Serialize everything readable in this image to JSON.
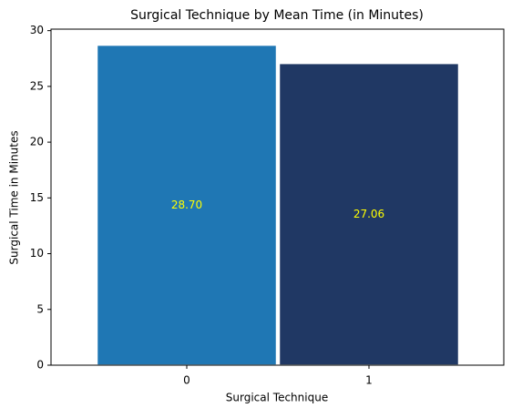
{
  "chart_data": {
    "type": "bar",
    "title": "Surgical Technique by Mean Time (in Minutes)",
    "x_label": "Surgical Technique",
    "y_label": "Surgical Time in Minutes",
    "categories": [
      "0",
      "1"
    ],
    "values": [
      28.7,
      27.06
    ],
    "value_labels": [
      "28.70",
      "27.06"
    ],
    "colors": [
      "#1f77b4",
      "#203864"
    ],
    "value_label_color": "#ffff00",
    "ylim": [
      0,
      30.135
    ],
    "yticks": [
      0,
      5,
      10,
      15,
      20,
      25,
      30
    ],
    "grid": false
  }
}
